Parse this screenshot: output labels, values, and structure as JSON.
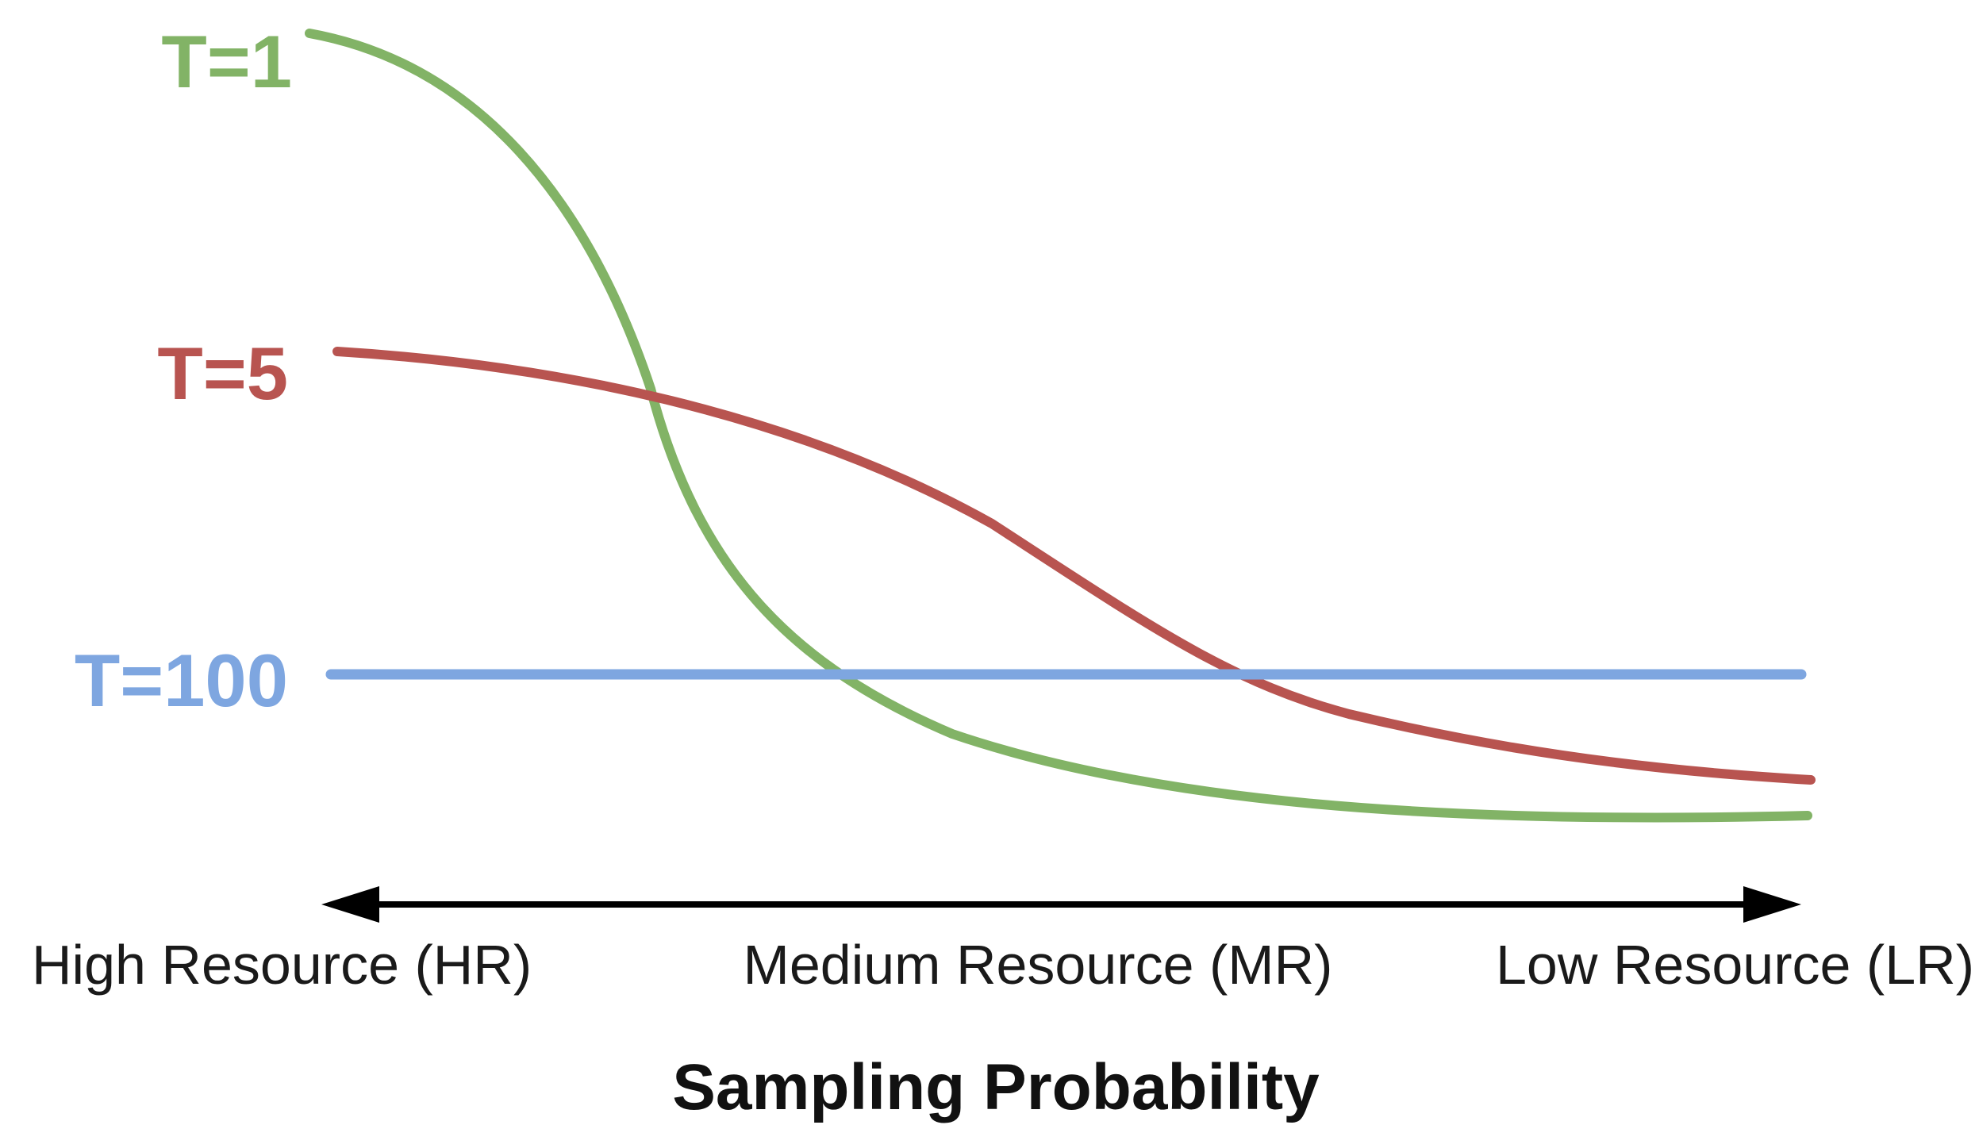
{
  "chart_data": {
    "type": "line",
    "x_categories": [
      "High Resource (HR)",
      "Medium Resource (MR)",
      "Low Resource (LR)"
    ],
    "xlabel": "Sampling Probability",
    "series": [
      {
        "name": "T=1",
        "color": "#82b366",
        "shape": "steep sigmoid decline from high to low",
        "level_start": 0.98,
        "level_end": 0.05
      },
      {
        "name": "T=5",
        "color": "#b85450",
        "shape": "gentle sigmoid decline",
        "level_start": 0.62,
        "level_end": 0.08
      },
      {
        "name": "T=100",
        "color": "#7ea6e0",
        "shape": "flat",
        "level_start": 0.19,
        "level_end": 0.19
      }
    ],
    "axis": {
      "type": "double-headed arrow",
      "color": "#000000"
    },
    "grid": false,
    "legend": "curve labels at left of each line"
  }
}
